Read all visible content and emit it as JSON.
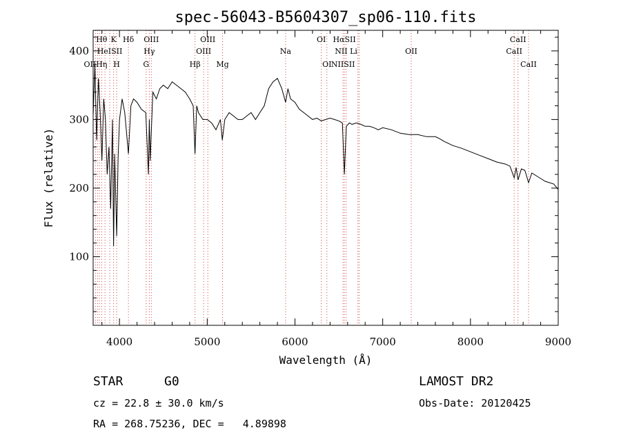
{
  "chart_data": {
    "type": "line",
    "title": "spec-56043-B5604307_sp06-110.fits",
    "xlabel": "Wavelength (Å)",
    "ylabel": "Flux (relative)",
    "xlim": [
      3700,
      9000
    ],
    "ylim": [
      0,
      430
    ],
    "x_ticks": [
      4000,
      5000,
      6000,
      7000,
      8000,
      9000
    ],
    "y_ticks": [
      100,
      200,
      300,
      400
    ],
    "grid": false,
    "series": [
      {
        "x": [
          3700,
          3720,
          3740,
          3760,
          3780,
          3800,
          3820,
          3840,
          3860,
          3880,
          3900,
          3920,
          3933,
          3945,
          3968,
          3985,
          4000,
          4030,
          4060,
          4102,
          4130,
          4160,
          4200,
          4250,
          4300,
          4330,
          4340,
          4350,
          4380,
          4420,
          4460,
          4500,
          4550,
          4600,
          4650,
          4700,
          4750,
          4800,
          4840,
          4861,
          4880,
          4900,
          4950,
          5000,
          5050,
          5100,
          5150,
          5172,
          5200,
          5250,
          5300,
          5350,
          5400,
          5450,
          5500,
          5550,
          5600,
          5650,
          5700,
          5750,
          5800,
          5850,
          5893,
          5920,
          5950,
          6000,
          6050,
          6100,
          6150,
          6200,
          6250,
          6300,
          6350,
          6400,
          6450,
          6500,
          6540,
          6563,
          6585,
          6620,
          6650,
          6700,
          6750,
          6800,
          6850,
          6900,
          6950,
          7000,
          7100,
          7200,
          7300,
          7400,
          7500,
          7600,
          7650,
          7700,
          7800,
          7900,
          8000,
          8100,
          8200,
          8300,
          8400,
          8450,
          8498,
          8520,
          8542,
          8580,
          8620,
          8662,
          8700,
          8750,
          8800,
          8850,
          8900,
          8950,
          9000
        ],
        "y": [
          305,
          380,
          270,
          360,
          310,
          240,
          330,
          300,
          220,
          260,
          170,
          300,
          115,
          250,
          130,
          245,
          300,
          330,
          310,
          250,
          320,
          330,
          325,
          315,
          310,
          220,
          300,
          240,
          340,
          330,
          345,
          350,
          345,
          355,
          350,
          345,
          340,
          330,
          320,
          250,
          320,
          310,
          300,
          300,
          295,
          285,
          300,
          270,
          300,
          310,
          305,
          300,
          300,
          305,
          310,
          300,
          310,
          320,
          345,
          355,
          360,
          345,
          325,
          345,
          330,
          325,
          315,
          310,
          305,
          300,
          302,
          298,
          300,
          302,
          300,
          298,
          295,
          220,
          290,
          295,
          293,
          295,
          293,
          290,
          290,
          288,
          285,
          288,
          285,
          280,
          278,
          278,
          275,
          275,
          272,
          268,
          262,
          258,
          253,
          248,
          243,
          238,
          235,
          232,
          215,
          230,
          212,
          228,
          226,
          208,
          222,
          218,
          214,
          210,
          208,
          206,
          198
        ]
      }
    ],
    "lines": [
      {
        "label": "Hθ",
        "x": 3797,
        "row": 1
      },
      {
        "label": "K",
        "x": 3933,
        "row": 1
      },
      {
        "label": "Hδ",
        "x": 4102,
        "row": 1
      },
      {
        "label": "OIII",
        "x": 4363,
        "row": 1
      },
      {
        "label": "OIII",
        "x": 5007,
        "row": 1
      },
      {
        "label": "OI",
        "x": 6300,
        "row": 1
      },
      {
        "label": "HαSII",
        "x": 6563,
        "row": 1
      },
      {
        "label": "CaII",
        "x": 8542,
        "row": 1
      },
      {
        "label": "HeISII",
        "x": 3889,
        "row": 2
      },
      {
        "label": "Hγ",
        "x": 4340,
        "row": 2
      },
      {
        "label": "OIII",
        "x": 4959,
        "row": 2
      },
      {
        "label": "Na",
        "x": 5893,
        "row": 2
      },
      {
        "label": "NII Li",
        "x": 6583,
        "row": 2
      },
      {
        "label": "OII",
        "x": 7325,
        "row": 2
      },
      {
        "label": "CaII",
        "x": 8498,
        "row": 2
      },
      {
        "label": "OIIHη",
        "x": 3727,
        "row": 3
      },
      {
        "label": "H",
        "x": 3968,
        "row": 3
      },
      {
        "label": "G",
        "x": 4304,
        "row": 3
      },
      {
        "label": "Hβ",
        "x": 4861,
        "row": 3
      },
      {
        "label": "Mg",
        "x": 5175,
        "row": 3
      },
      {
        "label": "OI",
        "x": 6364,
        "row": 3
      },
      {
        "label": "NIISII",
        "x": 6548,
        "row": 3
      },
      {
        "label": "CaII",
        "x": 8662,
        "row": 3
      }
    ],
    "line_marker_x": [
      3727,
      3750,
      3771,
      3797,
      3835,
      3889,
      3933,
      3968,
      4102,
      4304,
      4340,
      4363,
      4861,
      4959,
      5007,
      5175,
      5893,
      6300,
      6364,
      6548,
      6563,
      6583,
      6717,
      6731,
      7325,
      8498,
      8542,
      8662
    ],
    "line_marker_color": "#d04040"
  },
  "info": {
    "class": "STAR",
    "subclass": "G0",
    "survey": "LAMOST DR2",
    "redshift": "cz = 22.8 ± 30.0 km/s",
    "obs_date": "Obs-Date: 20120425",
    "coords": "RA = 268.75236, DEC =   4.89898"
  }
}
